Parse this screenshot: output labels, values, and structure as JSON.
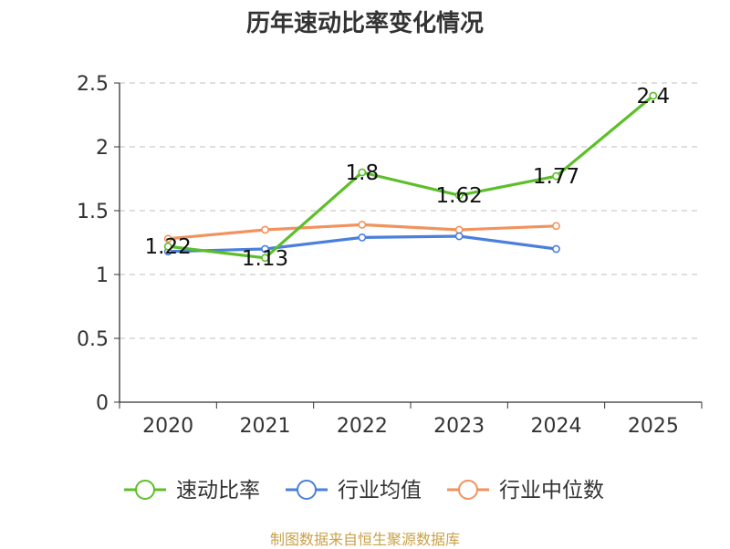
{
  "chart_data": {
    "type": "line",
    "title": "历年速动比率变化情况",
    "categories": [
      "2020",
      "2021",
      "2022",
      "2023",
      "2024",
      "2025"
    ],
    "ylim": [
      0,
      2.5
    ],
    "yticks": [
      "0",
      "0.5",
      "1",
      "1.5",
      "2",
      "2.5"
    ],
    "grid": true,
    "legend_position": "bottom",
    "series": [
      {
        "name": "速动比率",
        "color": "#5cbf2a",
        "values": [
          1.22,
          1.13,
          1.8,
          1.62,
          1.77,
          2.4
        ],
        "labels": [
          "1.22",
          "1.13",
          "1.8",
          "1.62",
          "1.77",
          "2.4"
        ]
      },
      {
        "name": "行业均值",
        "color": "#4a7fdb",
        "values": [
          1.18,
          1.2,
          1.29,
          1.3,
          1.2,
          null
        ]
      },
      {
        "name": "行业中位数",
        "color": "#f2925c",
        "values": [
          1.28,
          1.35,
          1.39,
          1.35,
          1.38,
          null
        ]
      }
    ]
  },
  "source": "制图数据来自恒生聚源数据库"
}
